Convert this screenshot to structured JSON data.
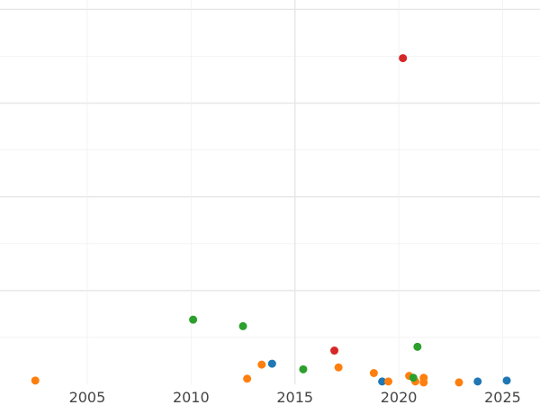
{
  "chart_data": {
    "type": "scatter",
    "title": "",
    "xlabel": "",
    "ylabel": "",
    "xlim": [
      2000.8,
      2026.8
    ],
    "ylim": [
      0,
      41000
    ],
    "xticks": [
      "2005",
      "2010",
      "2015",
      "2020",
      "2025"
    ],
    "yticks": [
      10000,
      20000,
      30000,
      40000
    ],
    "grid": true,
    "legend": "none",
    "series": [
      {
        "color": "#1f77b4",
        "points": [
          {
            "x": 2013.9,
            "y": 2200
          },
          {
            "x": 2019.2,
            "y": 300
          },
          {
            "x": 2023.8,
            "y": 300
          },
          {
            "x": 2025.2,
            "y": 400
          }
        ]
      },
      {
        "color": "#ff7f0e",
        "points": [
          {
            "x": 2002.5,
            "y": 400
          },
          {
            "x": 2012.7,
            "y": 600
          },
          {
            "x": 2013.4,
            "y": 2100
          },
          {
            "x": 2017.1,
            "y": 1800
          },
          {
            "x": 2018.8,
            "y": 1200
          },
          {
            "x": 2019.5,
            "y": 300
          },
          {
            "x": 2020.5,
            "y": 900
          },
          {
            "x": 2020.8,
            "y": 300
          },
          {
            "x": 2021.2,
            "y": 700
          },
          {
            "x": 2021.2,
            "y": 200
          },
          {
            "x": 2022.9,
            "y": 200
          }
        ]
      },
      {
        "color": "#2ca02c",
        "points": [
          {
            "x": 2010.1,
            "y": 6900
          },
          {
            "x": 2012.5,
            "y": 6200
          },
          {
            "x": 2015.4,
            "y": 1600
          },
          {
            "x": 2020.7,
            "y": 700
          },
          {
            "x": 2020.9,
            "y": 4000
          }
        ]
      },
      {
        "color": "#d62728",
        "points": [
          {
            "x": 2016.9,
            "y": 3600
          },
          {
            "x": 2020.2,
            "y": 34800
          }
        ]
      }
    ]
  }
}
